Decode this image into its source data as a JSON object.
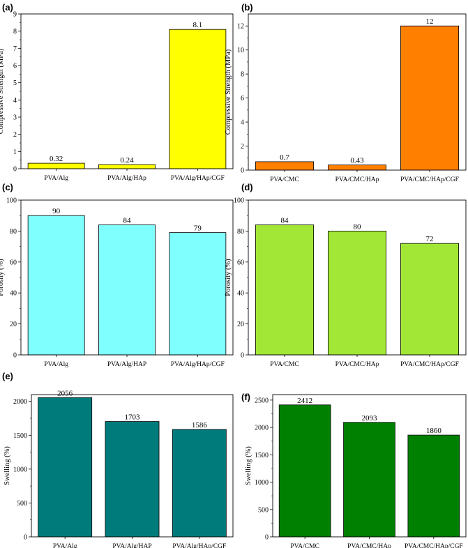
{
  "chart_data": [
    {
      "panel": "(a)",
      "type": "bar",
      "title": "",
      "xlabel": "",
      "ylabel": "Compressive Strength (MPa)",
      "categories": [
        "PVA/Alg",
        "PVA/Alg/HAp",
        "PVA/Alg/HAp/CGF"
      ],
      "values": [
        0.32,
        0.24,
        8.1
      ],
      "value_labels": [
        "0.32",
        "0.24",
        "8.1"
      ],
      "ylim": [
        0,
        9
      ],
      "yticks": [
        0,
        1,
        2,
        3,
        4,
        5,
        6,
        7,
        8,
        9
      ],
      "bar_color": "#ffff00"
    },
    {
      "panel": "(b)",
      "type": "bar",
      "title": "",
      "xlabel": "",
      "ylabel": "Compressive Strength (MPa)",
      "categories": [
        "PVA/CMC",
        "PVA/CMC/HAp",
        "PVA/CMC/HAp/CGF"
      ],
      "values": [
        0.7,
        0.43,
        12
      ],
      "value_labels": [
        "0.7",
        "0.43",
        "12"
      ],
      "ylim": [
        0,
        13
      ],
      "yticks": [
        0,
        2,
        4,
        6,
        8,
        10,
        12
      ],
      "bar_color": "#ff7f00"
    },
    {
      "panel": "(c)",
      "type": "bar",
      "title": "",
      "xlabel": "",
      "ylabel": "Porosity (%)",
      "categories": [
        "PVA/Alg",
        "PVA/Alg/HAP",
        "PVA/Alg/HAp/CGF"
      ],
      "values": [
        90,
        84,
        79
      ],
      "value_labels": [
        "90",
        "84",
        "79"
      ],
      "ylim": [
        0,
        100
      ],
      "yticks": [
        0,
        20,
        40,
        60,
        80,
        100
      ],
      "bar_color": "#80ffff"
    },
    {
      "panel": "(d)",
      "type": "bar",
      "title": "",
      "xlabel": "",
      "ylabel": "Porosity (%)",
      "categories": [
        "PVA/CMC",
        "PVA/CMC/HAp",
        "PVA/CMC/HAp/CGF"
      ],
      "values": [
        84,
        80,
        72
      ],
      "value_labels": [
        "84",
        "80",
        "72"
      ],
      "ylim": [
        0,
        100
      ],
      "yticks": [
        0,
        20,
        40,
        60,
        80,
        100
      ],
      "bar_color": "#a2e636"
    },
    {
      "panel": "(e)",
      "type": "bar",
      "title": "",
      "xlabel": "",
      "ylabel": "Swelling (%)",
      "categories": [
        "PVA/Alg",
        "PVA/Alg/HAP",
        "PVA/Alg/HAp/CGF"
      ],
      "values": [
        2056,
        1703,
        1586
      ],
      "value_labels": [
        "2056",
        "1703",
        "1586"
      ],
      "ylim": [
        0,
        2100
      ],
      "yticks": [
        0,
        500,
        1000,
        1500,
        2000
      ],
      "bar_color": "#007b7b"
    },
    {
      "panel": "(f)",
      "type": "bar",
      "title": "",
      "xlabel": "",
      "ylabel": "Swelling (%)",
      "categories": [
        "PVA/CMC",
        "PVA/CMC/HAp",
        "PVA/CMC/HAp/CGF"
      ],
      "values": [
        2412,
        2093,
        1860
      ],
      "value_labels": [
        "2412",
        "2093",
        "1860"
      ],
      "ylim": [
        0,
        2600
      ],
      "yticks": [
        0,
        500,
        1000,
        1500,
        2000,
        2500
      ],
      "bar_color": "#008000"
    }
  ]
}
